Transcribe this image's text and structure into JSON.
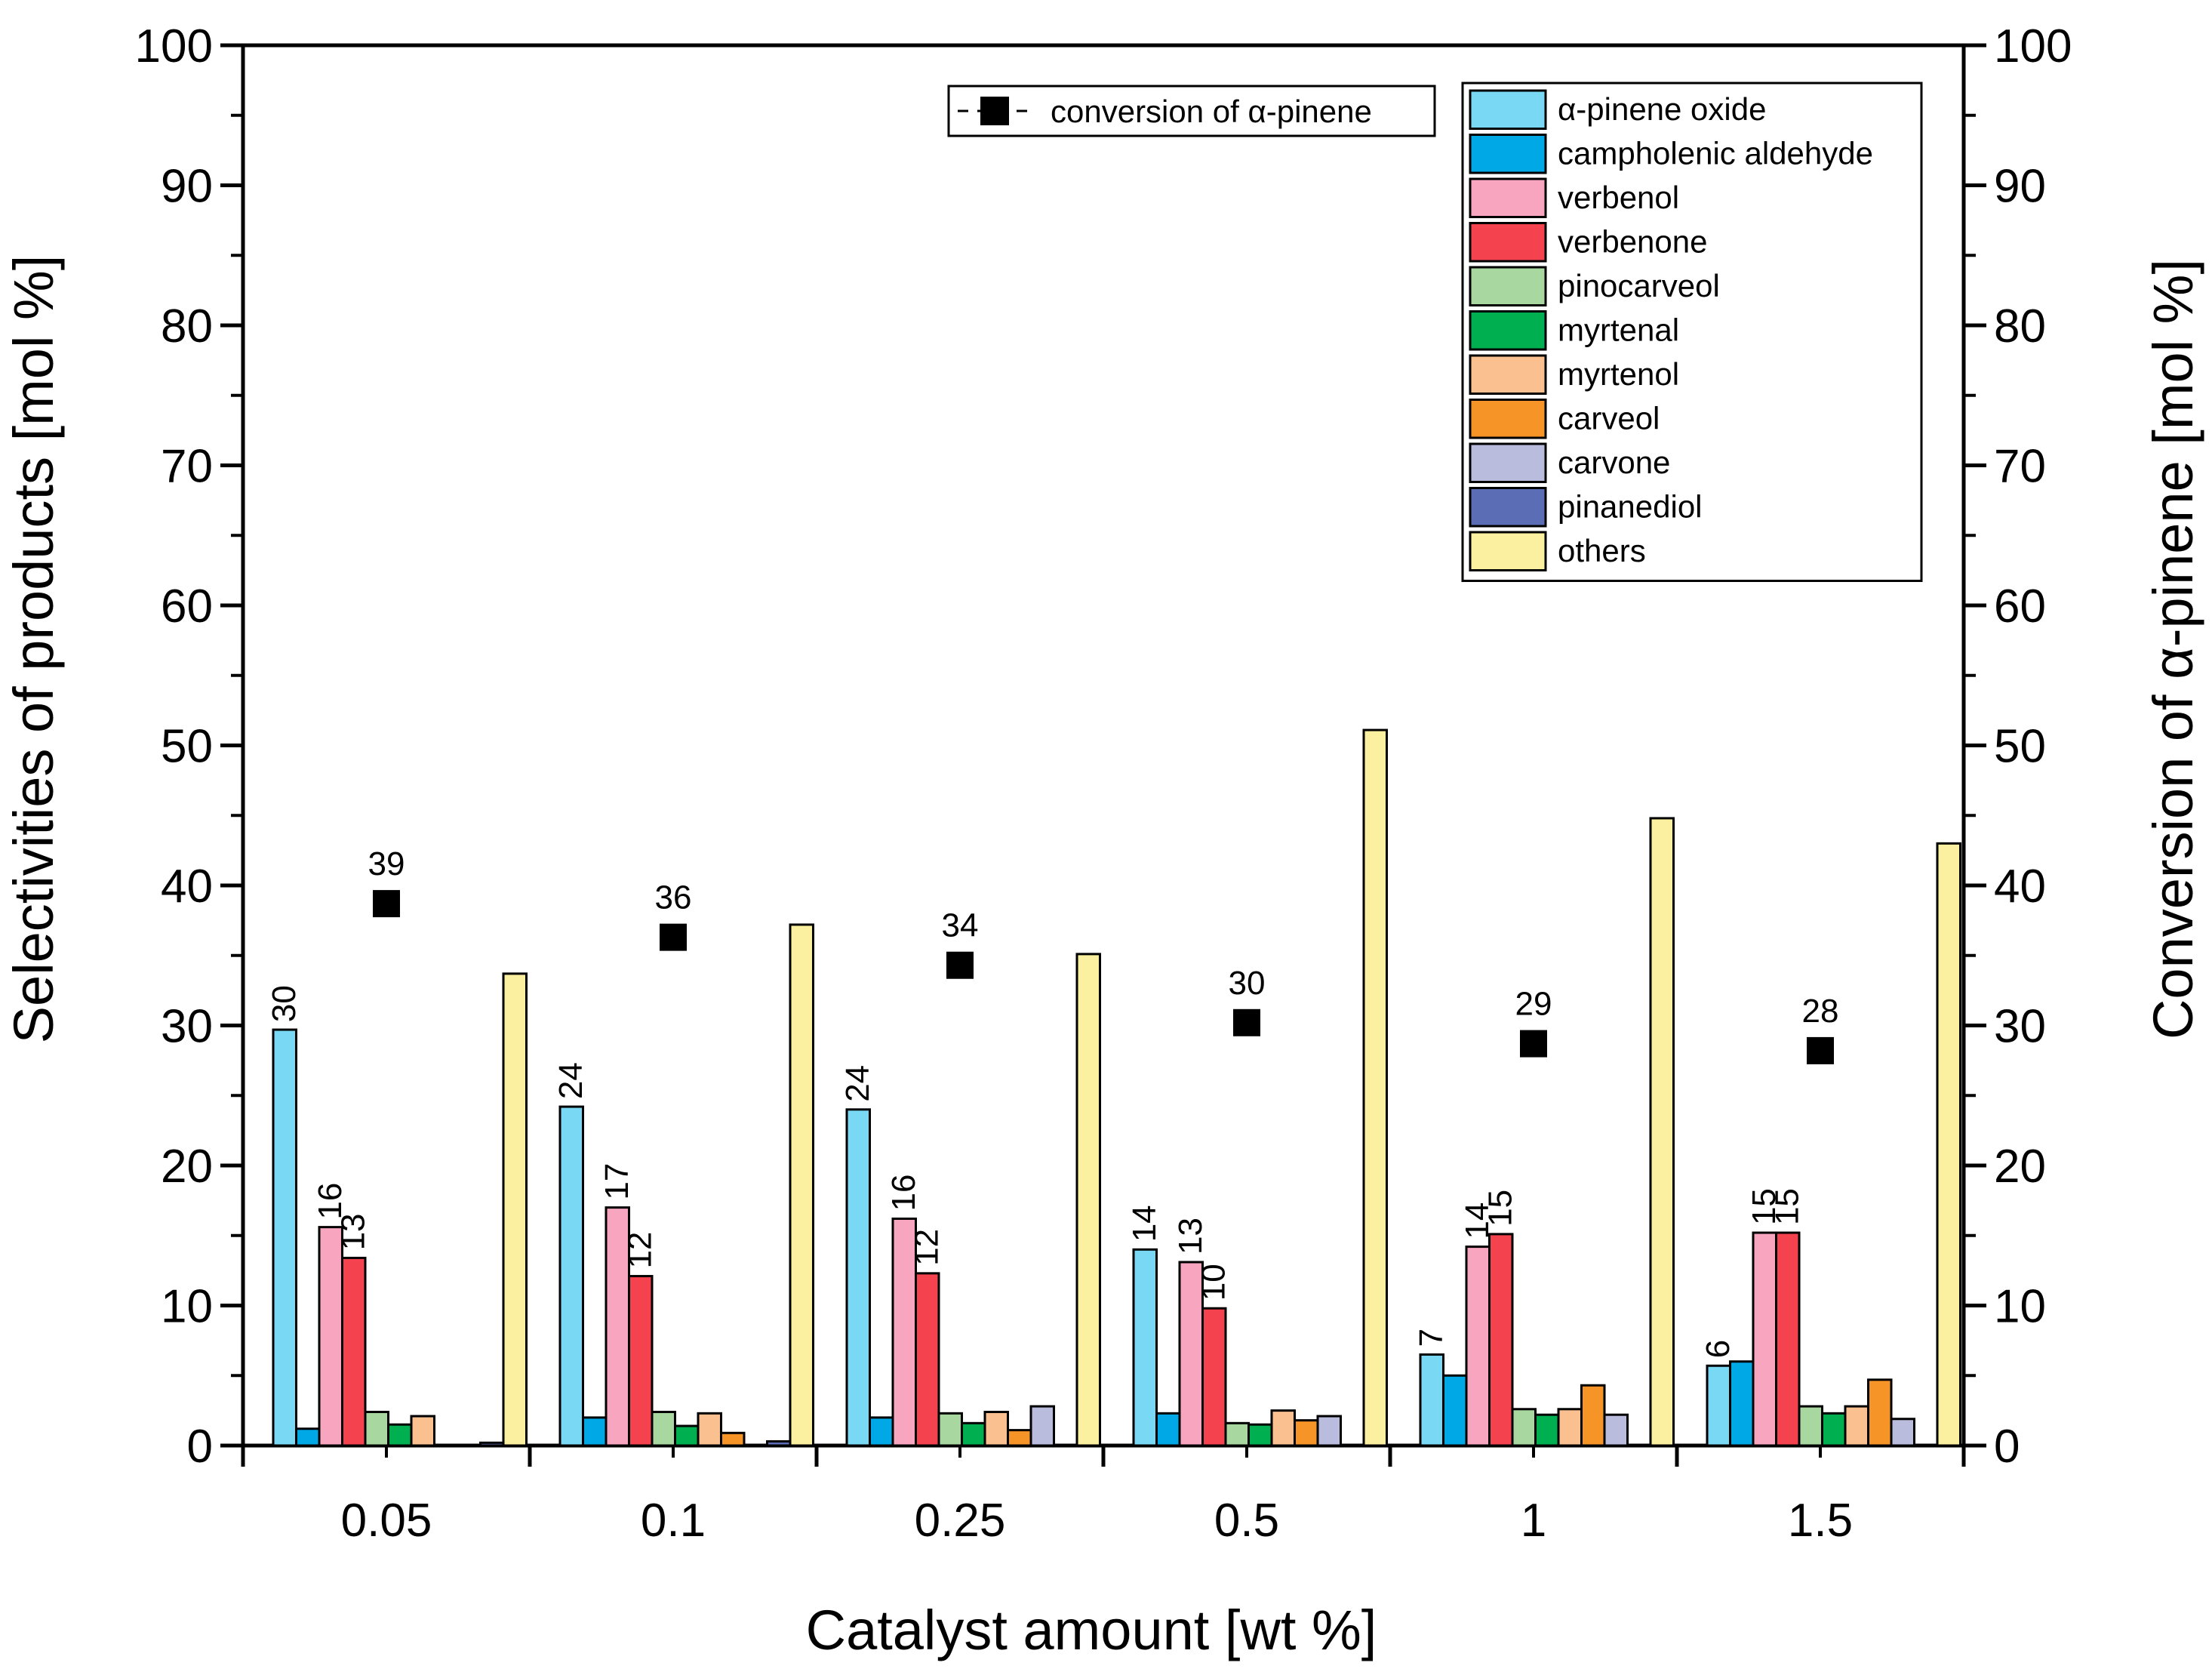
{
  "chart_data": {
    "type": "bar",
    "xlabel": "Catalyst amount [wt %]",
    "ylabel_left": "Selectivities of products [mol %]",
    "ylabel_right": "Conversion of α-pinene [mol %]",
    "ylim": [
      0,
      100
    ],
    "yticks": [
      "0",
      "10",
      "20",
      "30",
      "40",
      "50",
      "60",
      "70",
      "80",
      "90",
      "100"
    ],
    "categories": [
      "0.05",
      "0.1",
      "0.25",
      "0.5",
      "1",
      "1.5"
    ],
    "series": [
      {
        "name": "α-pinene oxide",
        "color": "#79D9F5",
        "values": [
          29.7,
          24.2,
          24.0,
          14.0,
          6.5,
          5.7
        ],
        "labels": [
          "30",
          "24",
          "24",
          "14",
          "7",
          "6"
        ]
      },
      {
        "name": "campholenic aldehyde",
        "color": "#00A9E6",
        "values": [
          1.2,
          2.0,
          2.0,
          2.3,
          5.0,
          6.0
        ],
        "labels": [
          "",
          "",
          "",
          "",
          "",
          ""
        ]
      },
      {
        "name": "verbenol",
        "color": "#F8A6C0",
        "values": [
          15.6,
          17.0,
          16.2,
          13.1,
          14.2,
          15.2
        ],
        "labels": [
          "16",
          "17",
          "16",
          "13",
          "14",
          "15"
        ]
      },
      {
        "name": "verbenone",
        "color": "#F5424F",
        "values": [
          13.4,
          12.1,
          12.3,
          9.8,
          15.1,
          15.2
        ],
        "labels": [
          "13",
          "12",
          "12",
          "10",
          "15",
          "15"
        ]
      },
      {
        "name": "pinocarveol",
        "color": "#A8D8A0",
        "values": [
          2.4,
          2.4,
          2.3,
          1.6,
          2.6,
          2.8
        ],
        "labels": [
          "",
          "",
          "",
          "",
          "",
          ""
        ]
      },
      {
        "name": "myrtenal",
        "color": "#00B050",
        "values": [
          1.5,
          1.4,
          1.6,
          1.5,
          2.2,
          2.3
        ],
        "labels": [
          "",
          "",
          "",
          "",
          "",
          ""
        ]
      },
      {
        "name": "myrtenol",
        "color": "#FAC090",
        "values": [
          2.1,
          2.3,
          2.4,
          2.5,
          2.6,
          2.8
        ],
        "labels": [
          "",
          "",
          "",
          "",
          "",
          ""
        ]
      },
      {
        "name": "carveol",
        "color": "#F79428",
        "values": [
          0.0,
          0.9,
          1.1,
          1.8,
          4.3,
          4.7
        ],
        "labels": [
          "",
          "",
          "",
          "",
          "",
          ""
        ]
      },
      {
        "name": "carvone",
        "color": "#BABCDE",
        "values": [
          0.0,
          0.0,
          2.8,
          2.1,
          2.2,
          1.9
        ],
        "labels": [
          "",
          "",
          "",
          "",
          "",
          ""
        ]
      },
      {
        "name": "pinanediol",
        "color": "#5B6DB5",
        "values": [
          0.2,
          0.3,
          0.0,
          0.0,
          0.0,
          0.0
        ],
        "labels": [
          "",
          "",
          "",
          "",
          "",
          ""
        ]
      },
      {
        "name": "others",
        "color": "#FAF0A0",
        "values": [
          33.7,
          37.2,
          35.1,
          51.1,
          44.8,
          43.0
        ],
        "labels": [
          "",
          "",
          "",
          "",
          "",
          ""
        ]
      }
    ],
    "conversion": {
      "name": "conversion of α-pinene",
      "values": [
        38.7,
        36.3,
        34.3,
        30.2,
        28.7,
        28.2
      ],
      "labels": [
        "39",
        "36",
        "34",
        "30",
        "29",
        "28"
      ]
    }
  }
}
